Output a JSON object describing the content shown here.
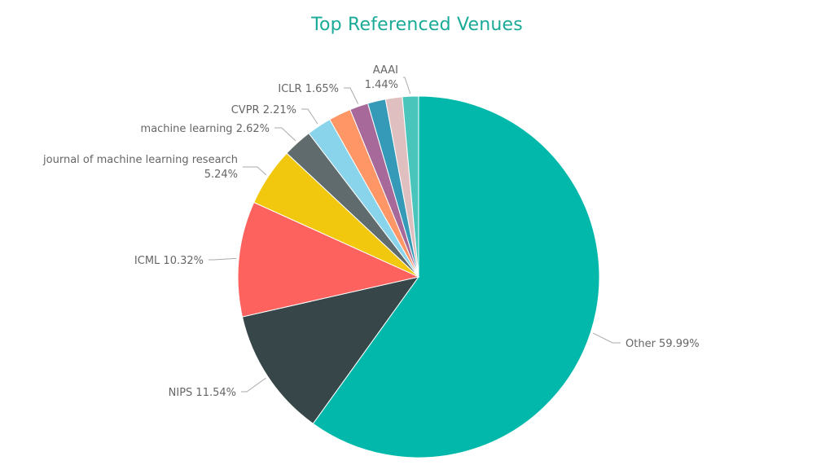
{
  "chart_data": {
    "type": "pie",
    "title": "Top Referenced Venues",
    "unit": "%",
    "slices": [
      {
        "label": "Other",
        "value": 59.99,
        "color": "#01b8aa"
      },
      {
        "label": "NIPS",
        "value": 11.54,
        "color": "#374649"
      },
      {
        "label": "ICML",
        "value": 10.32,
        "color": "#fd625e"
      },
      {
        "label": "journal of machine learning research",
        "value": 5.24,
        "color": "#f2c80f"
      },
      {
        "label": "machine learning",
        "value": 2.62,
        "color": "#5f6b6d"
      },
      {
        "label": "CVPR",
        "value": 2.21,
        "color": "#8ad4eb"
      },
      {
        "label": "",
        "value": 2.0,
        "color": "#fe9666"
      },
      {
        "label": "ICLR",
        "value": 1.65,
        "color": "#a66999"
      },
      {
        "label": "",
        "value": 1.6,
        "color": "#3599b8"
      },
      {
        "label": "",
        "value": 1.5,
        "color": "#dfbfbf"
      },
      {
        "label": "AAAI",
        "value": 1.44,
        "color": "#4ac5bb"
      }
    ],
    "labels": [
      {
        "text": "Other 59.99%",
        "slice": 0
      },
      {
        "text": "NIPS 11.54%",
        "slice": 1
      },
      {
        "text": "ICML 10.32%",
        "slice": 2
      },
      {
        "text": "journal of machine learning research",
        "text2": "5.24%",
        "slice": 3
      },
      {
        "text": "machine learning 2.62%",
        "slice": 4
      },
      {
        "text": "CVPR 2.21%",
        "slice": 5
      },
      {
        "text": "ICLR 1.65%",
        "slice": 7
      },
      {
        "text": "AAAI",
        "text2": "1.44%",
        "slice": 10
      }
    ]
  }
}
